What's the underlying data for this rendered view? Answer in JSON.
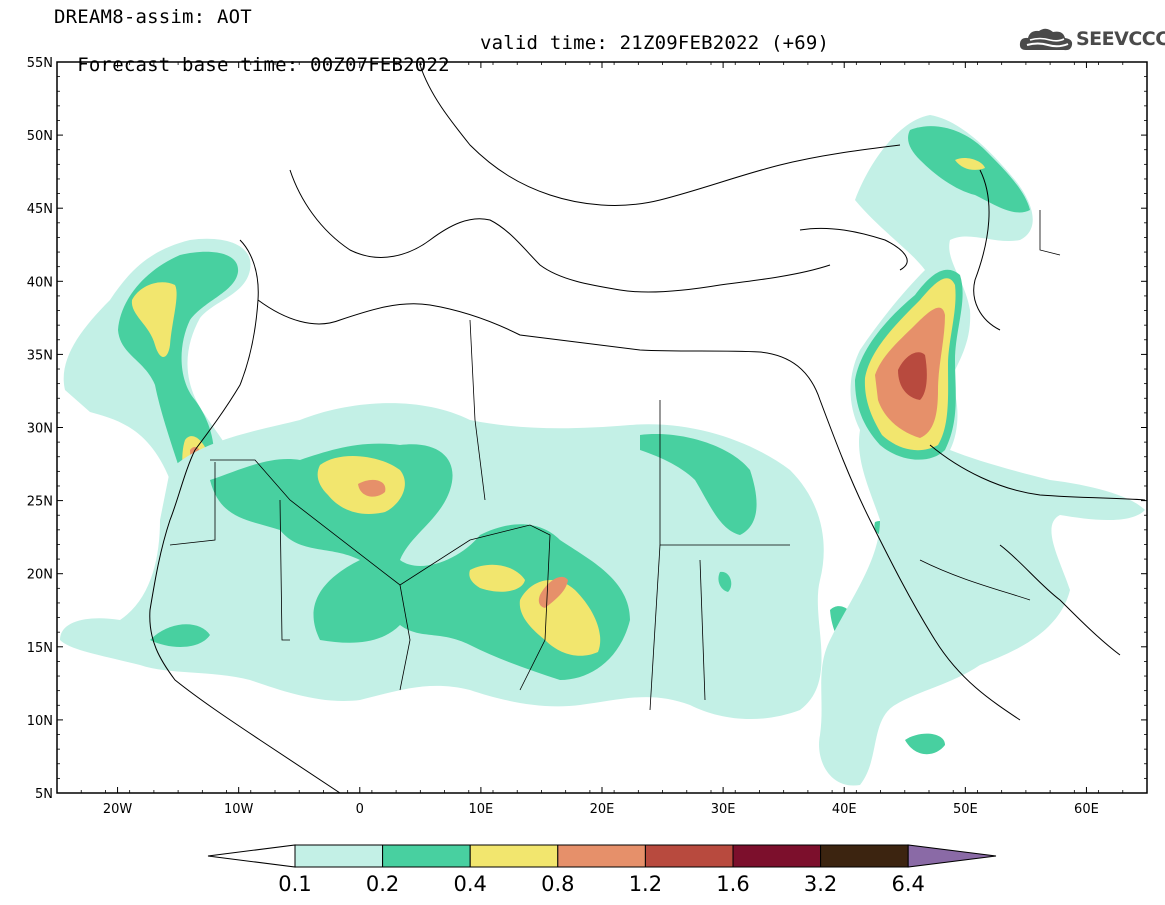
{
  "header": {
    "title": "DREAM8-assim: AOT",
    "base_time_label": "Forecast base time: 00Z07FEB2022",
    "valid_time_label": "valid time: 21Z09FEB2022 (+69)"
  },
  "logo": {
    "text": "SEEVCCC",
    "icon": "cloud-icon"
  },
  "map": {
    "lat_ticks": [
      "55N",
      "50N",
      "45N",
      "40N",
      "35N",
      "30N",
      "25N",
      "20N",
      "15N",
      "10N",
      "5N"
    ],
    "lon_ticks": [
      "20W",
      "10W",
      "0",
      "10E",
      "20E",
      "30E",
      "40E",
      "50E",
      "60E"
    ],
    "lat_range": [
      5,
      55
    ],
    "lon_range": [
      -25,
      65
    ],
    "colorbar": {
      "labels": [
        "0.1",
        "0.2",
        "0.4",
        "0.8",
        "1.2",
        "1.6",
        "3.2",
        "6.4"
      ],
      "colors": [
        "#c3f0e6",
        "#48d0a0",
        "#f2e66e",
        "#e6906a",
        "#b84a3e",
        "#7c0f2c",
        "#3c2410",
        "#8a6aa6"
      ]
    }
  }
}
